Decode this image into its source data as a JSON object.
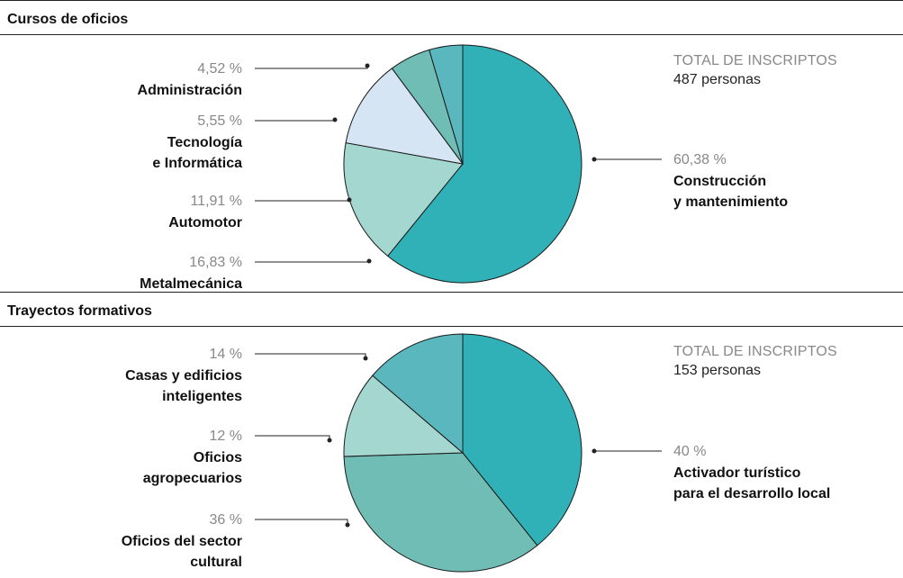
{
  "chart_data": [
    {
      "type": "pie",
      "title": "Cursos de oficios",
      "total_label": "TOTAL DE INSCRIPTOS",
      "total_value": "487 personas",
      "slices": [
        {
          "pct": "60,38 %",
          "value": 60.38,
          "label": "Construcción y mantenimiento",
          "lines": [
            "Construcción",
            "y mantenimiento"
          ],
          "color": "#2fb1b7",
          "side": "right"
        },
        {
          "pct": "16,83 %",
          "value": 16.83,
          "label": "Metalmecánica",
          "lines": [
            "Metalmecánica"
          ],
          "color": "#a5d7d1",
          "side": "left"
        },
        {
          "pct": "11,91 %",
          "value": 11.91,
          "label": "Automotor",
          "lines": [
            "Automotor"
          ],
          "color": "#d5e5f4",
          "side": "left"
        },
        {
          "pct": "5,55 %",
          "value": 5.55,
          "label": "Tecnología e Informática",
          "lines": [
            "Tecnología",
            "e Informática"
          ],
          "color": "#6fbdb4",
          "side": "left"
        },
        {
          "pct": "4,52 %",
          "value": 4.52,
          "label": "Administración",
          "lines": [
            "Administración"
          ],
          "color": "#5bb7be",
          "side": "left"
        }
      ]
    },
    {
      "type": "pie",
      "title": "Trayectos formativos",
      "total_label": "TOTAL DE INSCRIPTOS",
      "total_value": "153 personas",
      "slices": [
        {
          "pct": "40 %",
          "value": 40,
          "label": "Activador turístico para el desarrollo local",
          "lines": [
            "Activador turístico",
            "para el desarrollo local"
          ],
          "color": "#2fb1b7",
          "side": "right"
        },
        {
          "pct": "36 %",
          "value": 36,
          "label": "Oficios del sector cultural",
          "lines": [
            "Oficios del sector",
            "cultural"
          ],
          "color": "#6fbdb4",
          "side": "left"
        },
        {
          "pct": "12 %",
          "value": 12,
          "label": "Oficios agropecuarios",
          "lines": [
            "Oficios",
            "agropecuarios"
          ],
          "color": "#a5d7d1",
          "side": "left"
        },
        {
          "pct": "14 %",
          "value": 14,
          "label": "Casas y edificios inteligentes",
          "lines": [
            "Casas y edificios",
            "inteligentes"
          ],
          "color": "#5bb7be",
          "side": "left"
        }
      ]
    }
  ]
}
